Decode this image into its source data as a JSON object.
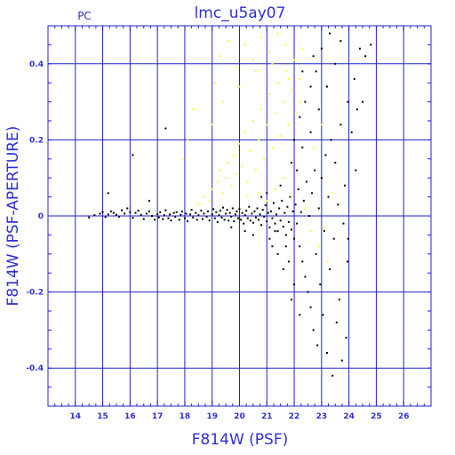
{
  "colors": {
    "axis": "#2323c8",
    "text": "#2f2fd6",
    "points_black": "#000000",
    "points_yellow": "#ffff33"
  },
  "chart_data": {
    "type": "scatter",
    "title": "lmc_u5ay07",
    "corner_label": "PC",
    "xlabel": "F814W (PSF)",
    "ylabel": "F814W (PSF-APERTURE)",
    "xlim": [
      13,
      27
    ],
    "ylim": [
      -0.5,
      0.5
    ],
    "x_ticks": [
      14,
      15,
      16,
      17,
      18,
      19,
      20,
      21,
      22,
      23,
      24,
      25,
      26
    ],
    "y_ticks": [
      -0.4,
      -0.2,
      0,
      0.2,
      0.4
    ],
    "y_tick_labels": [
      "-0.4",
      "-0.2",
      "0",
      "0.2",
      "0.4"
    ],
    "grid": true,
    "series": [
      {
        "color": "#000000",
        "points": [
          [
            14.5,
            -0.004
          ],
          [
            14.7,
            0.002
          ],
          [
            14.9,
            0.006
          ],
          [
            15.0,
            0.01
          ],
          [
            15.1,
            -0.003
          ],
          [
            15.2,
            0.004
          ],
          [
            15.3,
            0.012
          ],
          [
            15.4,
            0.008
          ],
          [
            15.5,
            0.003
          ],
          [
            15.6,
            -0.002
          ],
          [
            15.7,
            0.015
          ],
          [
            15.8,
            0.006
          ],
          [
            15.9,
            0.02
          ],
          [
            16.0,
            0.01
          ],
          [
            16.1,
            -0.005
          ],
          [
            16.2,
            0.008
          ],
          [
            16.3,
            0.014
          ],
          [
            16.4,
            0.003
          ],
          [
            16.5,
            -0.008
          ],
          [
            16.6,
            0.006
          ],
          [
            16.7,
            0.012
          ],
          [
            16.8,
            0.0
          ],
          [
            16.9,
            -0.01
          ],
          [
            17.0,
            0.005
          ],
          [
            17.05,
            -0.004
          ],
          [
            17.1,
            0.01
          ],
          [
            17.2,
            -0.008
          ],
          [
            17.25,
            0.002
          ],
          [
            17.3,
            0.015
          ],
          [
            17.4,
            -0.006
          ],
          [
            17.45,
            0.004
          ],
          [
            17.5,
            -0.012
          ],
          [
            17.6,
            0.008
          ],
          [
            17.65,
            -0.002
          ],
          [
            17.7,
            0.01
          ],
          [
            17.8,
            -0.01
          ],
          [
            17.85,
            0.003
          ],
          [
            17.9,
            0.012
          ],
          [
            18.0,
            -0.006
          ],
          [
            18.05,
            0.006
          ],
          [
            18.1,
            -0.014
          ],
          [
            18.2,
            0.004
          ],
          [
            18.25,
            0.016
          ],
          [
            18.3,
            -0.004
          ],
          [
            18.4,
            0.008
          ],
          [
            18.45,
            -0.01
          ],
          [
            18.5,
            0.002
          ],
          [
            18.6,
            0.014
          ],
          [
            18.65,
            -0.008
          ],
          [
            18.7,
            0.006
          ],
          [
            18.8,
            -0.002
          ],
          [
            18.85,
            0.012
          ],
          [
            18.9,
            -0.012
          ],
          [
            19.0,
            0.004
          ],
          [
            19.05,
            0.018
          ],
          [
            19.1,
            -0.006
          ],
          [
            19.15,
            0.01
          ],
          [
            19.2,
            -0.016
          ],
          [
            19.25,
            0.002
          ],
          [
            19.3,
            0.014
          ],
          [
            19.35,
            -0.004
          ],
          [
            19.4,
            0.022
          ],
          [
            19.45,
            -0.01
          ],
          [
            19.5,
            0.006
          ],
          [
            19.55,
            0.016
          ],
          [
            19.6,
            -0.012
          ],
          [
            19.65,
            0.008
          ],
          [
            19.7,
            -0.002
          ],
          [
            19.75,
            0.02
          ],
          [
            19.8,
            -0.014
          ],
          [
            19.85,
            0.004
          ],
          [
            19.9,
            0.012
          ],
          [
            19.95,
            -0.006
          ],
          [
            20.0,
            0.018
          ],
          [
            20.05,
            -0.01
          ],
          [
            20.1,
            0.008
          ],
          [
            20.15,
            -0.02
          ],
          [
            20.2,
            0.002
          ],
          [
            20.25,
            0.014
          ],
          [
            20.3,
            -0.006
          ],
          [
            20.35,
            0.024
          ],
          [
            20.4,
            -0.012
          ],
          [
            20.45,
            0.006
          ],
          [
            20.5,
            -0.018
          ],
          [
            20.55,
            0.012
          ],
          [
            20.6,
            -0.004
          ],
          [
            20.65,
            0.02
          ],
          [
            20.7,
            -0.01
          ],
          [
            20.75,
            0.004
          ],
          [
            20.8,
            -0.024
          ],
          [
            20.85,
            0.016
          ],
          [
            20.9,
            -0.002
          ],
          [
            20.95,
            0.028
          ],
          [
            21.0,
            -0.014
          ],
          [
            21.05,
            0.008
          ],
          [
            21.1,
            -0.03
          ],
          [
            21.15,
            0.012
          ],
          [
            21.2,
            -0.006
          ],
          [
            21.25,
            0.034
          ],
          [
            21.3,
            -0.02
          ],
          [
            21.35,
            0.004
          ],
          [
            21.4,
            -0.04
          ],
          [
            21.45,
            0.02
          ],
          [
            21.5,
            -0.012
          ],
          [
            21.55,
            0.04
          ],
          [
            21.6,
            -0.028
          ],
          [
            21.65,
            0.008
          ],
          [
            21.7,
            -0.05
          ],
          [
            21.75,
            0.024
          ],
          [
            21.8,
            -0.016
          ],
          [
            21.85,
            0.05
          ],
          [
            21.9,
            -0.036
          ],
          [
            21.95,
            0.012
          ],
          [
            22.0,
            -0.06
          ],
          [
            22.05,
            0.03
          ],
          [
            22.1,
            -0.02
          ],
          [
            22.15,
            0.07
          ],
          [
            22.2,
            -0.08
          ],
          [
            22.25,
            0.01
          ],
          [
            22.3,
            -0.12
          ],
          [
            22.35,
            0.04
          ],
          [
            22.4,
            -0.16
          ],
          [
            22.45,
            0.09
          ],
          [
            22.5,
            -0.2
          ],
          [
            22.55,
            0.0
          ],
          [
            22.6,
            -0.24
          ],
          [
            22.65,
            0.06
          ],
          [
            22.7,
            -0.3
          ],
          [
            22.75,
            0.12
          ],
          [
            22.8,
            -0.1
          ],
          [
            22.85,
            -0.34
          ],
          [
            22.9,
            0.02
          ],
          [
            22.95,
            -0.18
          ],
          [
            23.0,
            0.1
          ],
          [
            23.05,
            -0.26
          ],
          [
            23.1,
            -0.04
          ],
          [
            23.15,
            0.16
          ],
          [
            23.2,
            -0.36
          ],
          [
            23.25,
            0.05
          ],
          [
            23.3,
            -0.14
          ],
          [
            23.35,
            0.2
          ],
          [
            23.4,
            -0.42
          ],
          [
            23.45,
            -0.06
          ],
          [
            23.5,
            0.14
          ],
          [
            23.55,
            -0.28
          ],
          [
            23.6,
            0.03
          ],
          [
            23.65,
            -0.22
          ],
          [
            23.7,
            0.24
          ],
          [
            23.75,
            -0.38
          ],
          [
            23.8,
            -0.02
          ],
          [
            23.85,
            0.08
          ],
          [
            23.9,
            -0.32
          ],
          [
            23.95,
            -0.12
          ],
          [
            23.96,
            0.3
          ],
          [
            23.97,
            -0.06
          ],
          [
            22.1,
            0.12
          ],
          [
            22.3,
            0.18
          ],
          [
            22.6,
            0.22
          ],
          [
            22.9,
            0.28
          ],
          [
            23.2,
            0.34
          ],
          [
            23.5,
            0.4
          ],
          [
            23.7,
            0.46
          ],
          [
            24.2,
            0.36
          ],
          [
            24.4,
            0.44
          ],
          [
            24.6,
            0.42
          ],
          [
            24.8,
            0.45
          ],
          [
            24.1,
            0.22
          ],
          [
            24.3,
            0.28
          ],
          [
            24.5,
            0.3
          ],
          [
            24.25,
            0.12
          ],
          [
            21.2,
            -0.08
          ],
          [
            21.4,
            -0.1
          ],
          [
            21.6,
            -0.14
          ],
          [
            21.8,
            -0.12
          ],
          [
            22.0,
            -0.18
          ],
          [
            21.9,
            -0.22
          ],
          [
            22.2,
            -0.26
          ],
          [
            21.1,
            -0.06
          ],
          [
            21.3,
            -0.04
          ],
          [
            21.7,
            -0.08
          ],
          [
            22.0,
            0.2
          ],
          [
            22.2,
            0.26
          ],
          [
            22.4,
            0.3
          ],
          [
            22.6,
            0.34
          ],
          [
            22.8,
            0.38
          ],
          [
            23.0,
            0.44
          ],
          [
            22.3,
            0.38
          ],
          [
            22.7,
            0.42
          ],
          [
            23.3,
            0.48
          ],
          [
            21.9,
            0.14
          ],
          [
            16.1,
            0.16
          ],
          [
            17.3,
            0.23
          ],
          [
            15.2,
            0.06
          ],
          [
            16.7,
            0.04
          ],
          [
            20.5,
            -0.05
          ],
          [
            20.2,
            -0.04
          ],
          [
            19.7,
            -0.03
          ],
          [
            21.0,
            0.06
          ],
          [
            21.5,
            0.08
          ],
          [
            20.8,
            0.05
          ]
        ]
      },
      {
        "color": "#ffff33",
        "points": [
          [
            18.5,
            0.03
          ],
          [
            18.7,
            0.05
          ],
          [
            18.9,
            0.04
          ],
          [
            19.0,
            0.07
          ],
          [
            19.2,
            0.09
          ],
          [
            19.3,
            0.12
          ],
          [
            19.4,
            0.06
          ],
          [
            19.5,
            0.1
          ],
          [
            19.6,
            0.14
          ],
          [
            19.7,
            0.08
          ],
          [
            19.8,
            0.16
          ],
          [
            19.9,
            0.11
          ],
          [
            20.0,
            0.19
          ],
          [
            20.1,
            0.13
          ],
          [
            20.2,
            0.22
          ],
          [
            20.3,
            0.09
          ],
          [
            20.4,
            0.17
          ],
          [
            20.5,
            0.25
          ],
          [
            20.6,
            0.12
          ],
          [
            20.7,
            0.2
          ],
          [
            20.8,
            0.28
          ],
          [
            20.9,
            0.15
          ],
          [
            21.0,
            0.24
          ],
          [
            21.1,
            0.32
          ],
          [
            21.2,
            0.18
          ],
          [
            21.3,
            0.27
          ],
          [
            21.4,
            0.35
          ],
          [
            21.5,
            0.21
          ],
          [
            21.6,
            0.3
          ],
          [
            21.7,
            0.38
          ],
          [
            21.8,
            0.24
          ],
          [
            21.9,
            0.33
          ],
          [
            22.0,
            0.41
          ],
          [
            22.1,
            0.27
          ],
          [
            22.2,
            0.36
          ],
          [
            22.3,
            0.44
          ],
          [
            19.1,
            0.35
          ],
          [
            19.3,
            0.42
          ],
          [
            19.6,
            0.46
          ],
          [
            19.9,
            0.39
          ],
          [
            20.2,
            0.45
          ],
          [
            20.5,
            0.41
          ],
          [
            20.8,
            0.47
          ],
          [
            21.1,
            0.43
          ],
          [
            21.4,
            0.48
          ],
          [
            21.7,
            0.45
          ],
          [
            18.1,
            0.2
          ],
          [
            18.3,
            0.28
          ],
          [
            17.9,
            0.15
          ],
          [
            19.0,
            0.24
          ],
          [
            19.4,
            0.3
          ],
          [
            20.0,
            0.34
          ],
          [
            20.6,
            0.38
          ],
          [
            21.2,
            0.4
          ],
          [
            21.8,
            0.36
          ],
          [
            22.2,
            0.3
          ],
          [
            20.3,
            0.05
          ],
          [
            20.7,
            0.06
          ],
          [
            21.0,
            0.04
          ],
          [
            21.3,
            0.07
          ],
          [
            21.6,
            0.1
          ],
          [
            21.9,
            0.05
          ],
          [
            22.4,
            0.02
          ],
          [
            22.6,
            -0.04
          ],
          [
            22.9,
            -0.08
          ],
          [
            23.1,
            -0.03
          ],
          [
            23.2,
            -0.12
          ],
          [
            23.4,
            0.06
          ],
          [
            22.7,
            0.18
          ],
          [
            23.0,
            0.24
          ]
        ]
      }
    ]
  }
}
